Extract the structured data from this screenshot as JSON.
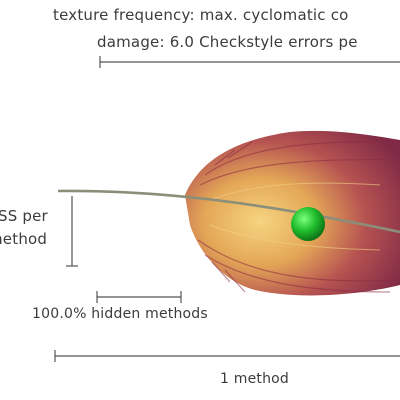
{
  "labels": {
    "top_line_1": "texture frequency: max. cyclomatic co",
    "top_line_2": "damage: 6.0 Checkstyle errors pe",
    "left_line_1": "SS per",
    "left_line_2": "method",
    "hidden_methods": "100.0% hidden methods",
    "bottom": "1 method"
  },
  "colors": {
    "feather_dark": "#7a1f3d",
    "feather_mid": "#a8424a",
    "feather_light": "#e8b85a",
    "ball": "#1fae2e",
    "lines": "#4a4a4a"
  }
}
